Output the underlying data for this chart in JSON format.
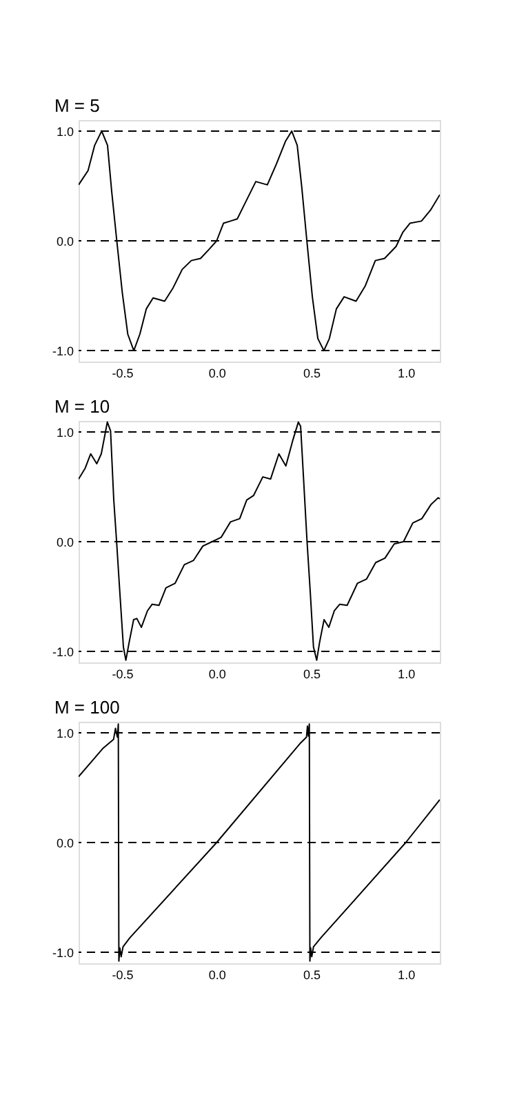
{
  "chart_data": [
    {
      "type": "line",
      "title": "M = 5",
      "xlim": [
        -0.73,
        1.18
      ],
      "ylim": [
        -1.1,
        1.1
      ],
      "xticks": [
        {
          "value": -0.5,
          "label": "-0.5"
        },
        {
          "value": 0,
          "label": "0.0"
        },
        {
          "value": 0.5,
          "label": "0.5"
        },
        {
          "value": 1,
          "label": "1.0"
        }
      ],
      "yticks": [
        {
          "value": -1,
          "label": "-1.0"
        },
        {
          "value": 0,
          "label": "0.0"
        },
        {
          "value": 1,
          "label": "1.0"
        }
      ],
      "grid": false,
      "ref_lines": [
        {
          "axis": "y",
          "value": 1,
          "line_style": "dashed",
          "color": "#000000"
        },
        {
          "axis": "y",
          "value": 0,
          "line_style": "dashed",
          "color": "#000000"
        },
        {
          "axis": "y",
          "value": -1,
          "line_style": "dashed",
          "color": "#000000"
        }
      ],
      "series": [
        {
          "color": "#000000",
          "x": [
            -0.73,
            -0.68,
            -0.645,
            -0.608,
            -0.577,
            -0.555,
            -0.528,
            -0.499,
            -0.47,
            -0.438,
            -0.406,
            -0.372,
            -0.336,
            -0.275,
            -0.231,
            -0.182,
            -0.134,
            -0.085,
            -0.036,
            0,
            0.036,
            0.073,
            0.109,
            0.158,
            0.207,
            0.268,
            0.316,
            0.365,
            0.397,
            0.426,
            0.45,
            0.477,
            0.506,
            0.535,
            0.567,
            0.596,
            0.633,
            0.674,
            0.737,
            0.786,
            0.839,
            0.888,
            0.949,
            0.985,
            1.022,
            1.083,
            1.131,
            1.18
          ],
          "values": [
            0.51,
            0.64,
            0.87,
            1.0,
            0.87,
            0.45,
            0,
            -0.47,
            -0.85,
            -1.0,
            -0.85,
            -0.62,
            -0.52,
            -0.55,
            -0.43,
            -0.26,
            -0.18,
            -0.16,
            -0.07,
            0,
            0.16,
            0.18,
            0.2,
            0.37,
            0.54,
            0.51,
            0.7,
            0.91,
            1.0,
            0.87,
            0.49,
            0,
            -0.51,
            -0.89,
            -1.0,
            -0.89,
            -0.62,
            -0.51,
            -0.55,
            -0.41,
            -0.18,
            -0.16,
            -0.05,
            0.08,
            0.16,
            0.18,
            0.28,
            0.42
          ]
        }
      ]
    },
    {
      "type": "line",
      "title": "M = 10",
      "xlim": [
        -0.73,
        1.18
      ],
      "ylim": [
        -1.1,
        1.1
      ],
      "xticks": [
        {
          "value": -0.5,
          "label": "-0.5"
        },
        {
          "value": 0,
          "label": "0.0"
        },
        {
          "value": 0.5,
          "label": "0.5"
        },
        {
          "value": 1,
          "label": "1.0"
        }
      ],
      "yticks": [
        {
          "value": -1,
          "label": "-1.0"
        },
        {
          "value": 0,
          "label": "0.0"
        },
        {
          "value": 1,
          "label": "1.0"
        }
      ],
      "grid": false,
      "ref_lines": [
        {
          "axis": "y",
          "value": 1,
          "line_style": "dashed",
          "color": "#000000"
        },
        {
          "axis": "y",
          "value": 0,
          "line_style": "dashed",
          "color": "#000000"
        },
        {
          "axis": "y",
          "value": -1,
          "line_style": "dashed",
          "color": "#000000"
        }
      ],
      "series": [
        {
          "color": "#000000",
          "x": [
            -0.73,
            -0.695,
            -0.666,
            -0.634,
            -0.61,
            -0.578,
            -0.561,
            -0.544,
            -0.529,
            -0.512,
            -0.493,
            -0.48,
            -0.463,
            -0.439,
            -0.422,
            -0.398,
            -0.366,
            -0.341,
            -0.305,
            -0.268,
            -0.22,
            -0.171,
            -0.122,
            -0.073,
            -0.024,
            0,
            0.024,
            0.073,
            0.122,
            0.159,
            0.195,
            0.244,
            0.285,
            0.329,
            0.366,
            0.402,
            0.432,
            0.444,
            0.459,
            0.478,
            0.495,
            0.512,
            0.529,
            0.544,
            0.568,
            0.593,
            0.622,
            0.651,
            0.69,
            0.744,
            0.793,
            0.841,
            0.89,
            0.939,
            0.988,
            1.037,
            1.085,
            1.134,
            1.171,
            1.18
          ],
          "values": [
            0.57,
            0.67,
            0.8,
            0.71,
            0.8,
            1.09,
            1.01,
            0.38,
            0,
            -0.46,
            -0.96,
            -1.08,
            -0.92,
            -0.71,
            -0.7,
            -0.78,
            -0.63,
            -0.57,
            -0.58,
            -0.42,
            -0.38,
            -0.21,
            -0.17,
            -0.04,
            0,
            0.02,
            0.04,
            0.18,
            0.21,
            0.38,
            0.42,
            0.59,
            0.57,
            0.8,
            0.69,
            0.92,
            1.09,
            1.05,
            0.59,
            0,
            -0.46,
            -0.96,
            -1.08,
            -0.92,
            -0.71,
            -0.78,
            -0.63,
            -0.57,
            -0.58,
            -0.38,
            -0.34,
            -0.19,
            -0.15,
            -0.02,
            0,
            0.17,
            0.21,
            0.34,
            0.4,
            0.39
          ]
        }
      ]
    },
    {
      "type": "line",
      "title": "M = 100",
      "xlim": [
        -0.73,
        1.18
      ],
      "ylim": [
        -1.1,
        1.1
      ],
      "xticks": [
        {
          "value": -0.5,
          "label": "-0.5"
        },
        {
          "value": 0,
          "label": "0.0"
        },
        {
          "value": 0.5,
          "label": "0.5"
        },
        {
          "value": 1,
          "label": "1.0"
        }
      ],
      "yticks": [
        {
          "value": -1,
          "label": "-1.0"
        },
        {
          "value": 0,
          "label": "0.0"
        },
        {
          "value": 1,
          "label": "1.0"
        }
      ],
      "grid": false,
      "ref_lines": [
        {
          "axis": "y",
          "value": 1,
          "line_style": "dashed",
          "color": "#000000"
        },
        {
          "axis": "y",
          "value": 0,
          "line_style": "dashed",
          "color": "#000000"
        },
        {
          "axis": "y",
          "value": -1,
          "line_style": "dashed",
          "color": "#000000"
        }
      ],
      "series": [
        {
          "color": "#000000",
          "x": [
            -0.73,
            -0.6,
            -0.545,
            -0.535,
            -0.525,
            -0.52,
            -0.517,
            -0.512,
            -0.505,
            -0.495,
            -0.46,
            0,
            0.44,
            0.475,
            0.48,
            0.485,
            0.49,
            0.493,
            0.497,
            0.503,
            0.512,
            0.55,
            1.0,
            1.18
          ],
          "values": [
            0.6,
            0.86,
            0.94,
            1.04,
            0.96,
            1.08,
            -1.08,
            -0.96,
            -1.04,
            -0.95,
            -0.87,
            0,
            0.9,
            0.96,
            1.06,
            0.97,
            1.08,
            -1.08,
            -0.96,
            -1.04,
            -0.95,
            -0.87,
            0,
            0.39
          ]
        }
      ]
    }
  ]
}
